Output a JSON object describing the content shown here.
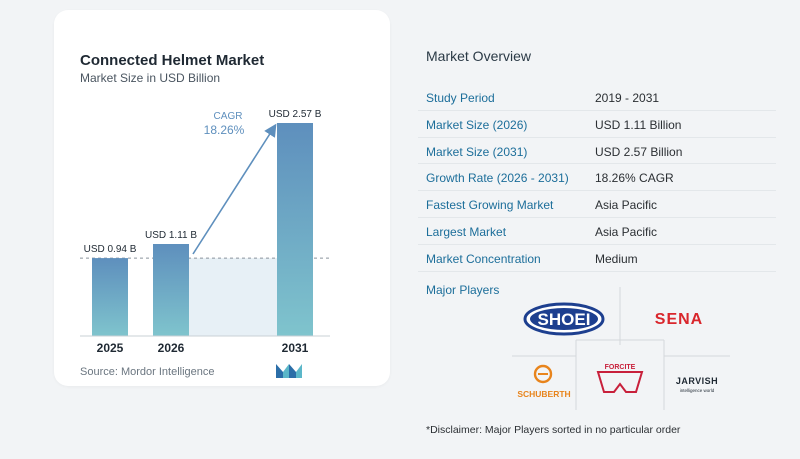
{
  "left_panel": {
    "title": "Connected Helmet Market",
    "subtitle": "Market Size in USD Billion",
    "source": "Source: Mordor Intelligence"
  },
  "chart_data": {
    "type": "bar",
    "title": "Connected Helmet Market",
    "subtitle": "Market Size in USD Billion",
    "categories": [
      "2025",
      "2026",
      "2031"
    ],
    "values": [
      0.94,
      1.11,
      2.57
    ],
    "data_labels": [
      "USD 0.94 B",
      "USD 1.11 B",
      "USD 2.57 B"
    ],
    "cagr_label": "CAGR",
    "cagr_value": "18.26%",
    "ylim": [
      0,
      2.57
    ],
    "grid": false,
    "colors": {
      "bar_top": "#5e8fbd",
      "bar_bottom": "#7fc4cd",
      "arrow": "#5e8fbd",
      "band": "#e7f0f6"
    }
  },
  "overview": {
    "title": "Market Overview",
    "rows": [
      {
        "key": "Study Period",
        "value": "2019 - 2031"
      },
      {
        "key": "Market Size (2026)",
        "value": "USD 1.11 Billion"
      },
      {
        "key": "Market Size (2031)",
        "value": "USD 2.57 Billion"
      },
      {
        "key": "Growth Rate (2026 - 2031)",
        "value": "18.26% CAGR"
      },
      {
        "key": "Fastest Growing Market",
        "value": "Asia Pacific"
      },
      {
        "key": "Largest Market",
        "value": "Asia Pacific"
      },
      {
        "key": "Market Concentration",
        "value": "Medium"
      }
    ],
    "players_title": "Major Players",
    "players": [
      "SHOEI",
      "SENA",
      "SCHUBERTH",
      "FORCITE",
      "JARVISH"
    ],
    "jarvish_tagline": "intelligence world",
    "disclaimer": "*Disclaimer: Major Players sorted in no particular order"
  },
  "colors": {
    "key_text": "#1c6e9a",
    "shoei_blue": "#1d3f8f",
    "sena_red": "#d9262c",
    "schuberth_orange": "#e8841c",
    "forcite_red": "#c8203b"
  }
}
